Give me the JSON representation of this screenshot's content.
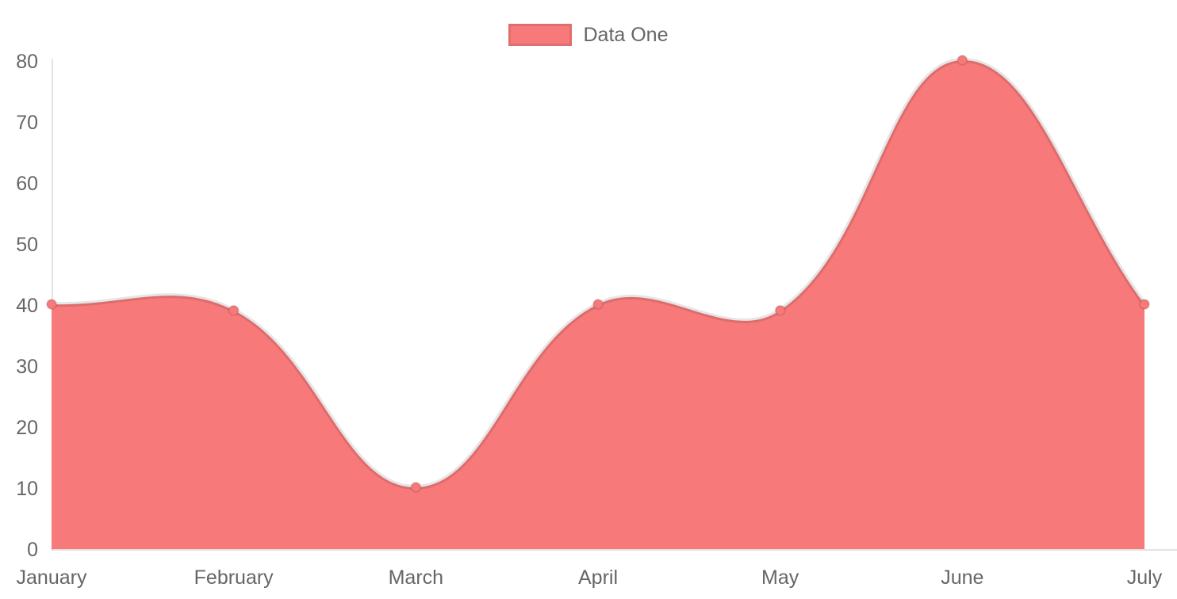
{
  "legend": {
    "label": "Data One",
    "position": "top"
  },
  "colors": {
    "fill": "#f87979",
    "line": "rgba(0,0,0,0.1)",
    "point_fill": "#f87979",
    "point_border": "rgba(0,0,0,0.1)",
    "axis_line": "rgba(0,0,0,0.11)",
    "tick_text": "#666666",
    "background": "#ffffff"
  },
  "chart_data": {
    "type": "area",
    "title": "",
    "xlabel": "",
    "ylabel": "",
    "categories": [
      "January",
      "February",
      "March",
      "April",
      "May",
      "June",
      "July"
    ],
    "series": [
      {
        "name": "Data One",
        "values": [
          40,
          39,
          10,
          40,
          39,
          80,
          40
        ]
      }
    ],
    "ylim": [
      0,
      80
    ],
    "yticks": [
      0,
      10,
      20,
      30,
      40,
      50,
      60,
      70,
      80
    ],
    "grid": false,
    "legend_position": "top",
    "line_tension": 0.4,
    "smooth": true
  }
}
